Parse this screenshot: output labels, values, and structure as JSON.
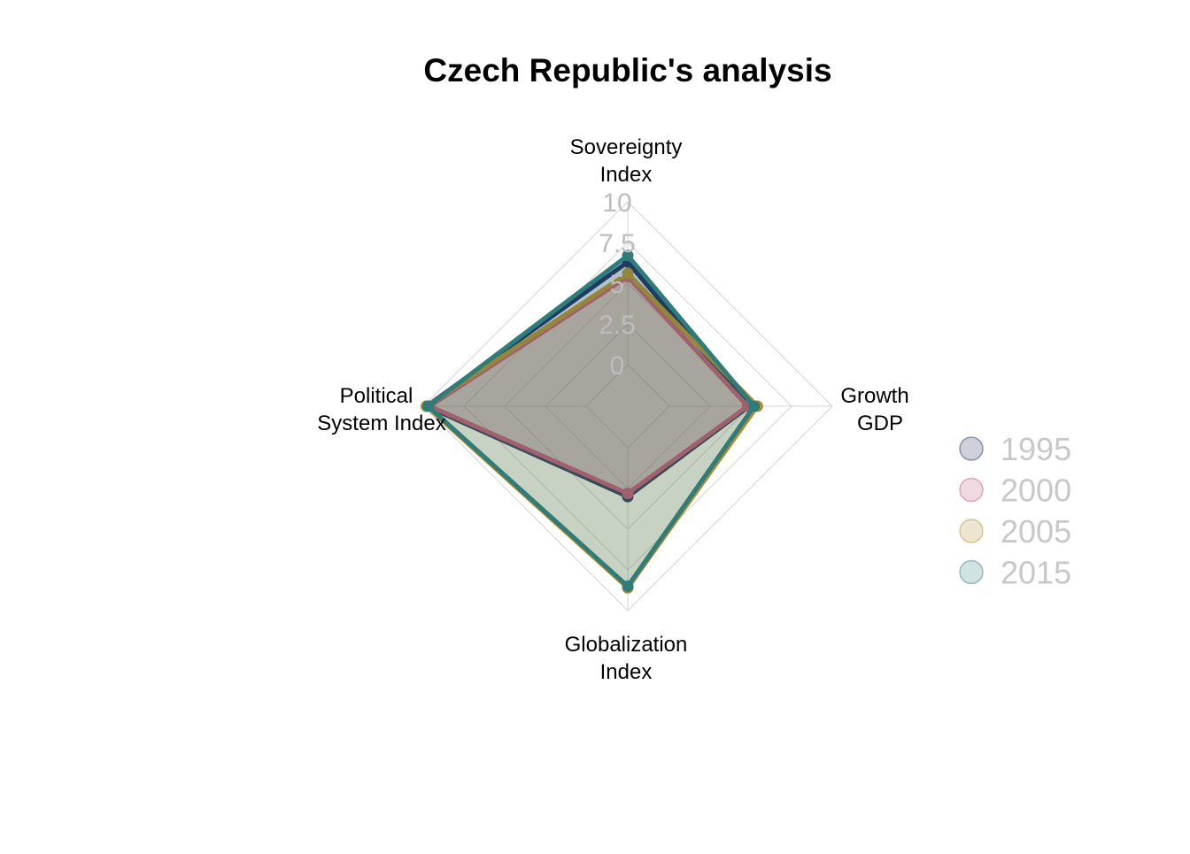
{
  "chart_data": {
    "type": "radar",
    "title": "Czech Republic's analysis",
    "axes": [
      {
        "label_lines": [
          "Sovereignty",
          "Index"
        ]
      },
      {
        "label_lines": [
          "Growth",
          "GDP"
        ]
      },
      {
        "label_lines": [
          "Globalization",
          "Index"
        ]
      },
      {
        "label_lines": [
          "Political",
          "System Index"
        ]
      }
    ],
    "ticks": [
      "0",
      "2.5",
      "5",
      "7.5",
      "10"
    ],
    "range": [
      0,
      10
    ],
    "grid": true,
    "legend_position": "right",
    "series": [
      {
        "name": "1995",
        "color": "#1f2a5c",
        "values": [
          6.3,
          4.9,
          3.0,
          9.8
        ]
      },
      {
        "name": "2000",
        "color": "#c0507a",
        "values": [
          5.4,
          4.8,
          2.8,
          9.6
        ]
      },
      {
        "name": "2005",
        "color": "#b08a2a",
        "values": [
          5.6,
          5.4,
          8.6,
          9.8
        ]
      },
      {
        "name": "2015",
        "color": "#2e7d7b",
        "values": [
          6.7,
          5.2,
          8.5,
          9.7
        ]
      }
    ]
  }
}
